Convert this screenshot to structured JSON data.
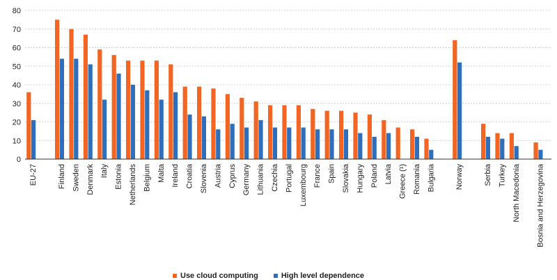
{
  "chart_data": {
    "type": "bar",
    "title": "",
    "xlabel": "",
    "ylabel": "",
    "ylim": [
      0,
      80
    ],
    "yticks": [
      0,
      10,
      20,
      30,
      40,
      50,
      60,
      70,
      80
    ],
    "grid": "horizontal dashed",
    "legend_position": "bottom-center",
    "categories": [
      "EU-27",
      "Finland",
      "Sweden",
      "Denmark",
      "Italy",
      "Estonia",
      "Netherlands",
      "Belgium",
      "Malta",
      "Ireland",
      "Croatia",
      "Slovenia",
      "Austria",
      "Cyprus",
      "Germany",
      "Lithuania",
      "Czechia",
      "Portugal",
      "Luxembourg",
      "France",
      "Spain",
      "Slovakia",
      "Hungary",
      "Poland",
      "Latvia",
      "Greece (¹)",
      "Romania",
      "Bulgaria",
      "Norway",
      "Serbia",
      "Turkey",
      "North Macedonia",
      "Bosnia and Herzegovina"
    ],
    "series": [
      {
        "name": "Use cloud computing",
        "color": "#f26522",
        "values": [
          36,
          75,
          70,
          67,
          59,
          56,
          53,
          53,
          53,
          51,
          39,
          39,
          38,
          35,
          33,
          31,
          29,
          29,
          29,
          27,
          26,
          26,
          25,
          24,
          21,
          17,
          16,
          11,
          64,
          19,
          14,
          14,
          9
        ]
      },
      {
        "name": "High level dependence",
        "color": "#2f6eba",
        "values": [
          21,
          54,
          54,
          51,
          32,
          46,
          40,
          37,
          32,
          36,
          24,
          23,
          16,
          19,
          17,
          21,
          17,
          17,
          17,
          16,
          16,
          16,
          14,
          12,
          14,
          null,
          12,
          5,
          52,
          12,
          11,
          7,
          5
        ]
      }
    ]
  }
}
